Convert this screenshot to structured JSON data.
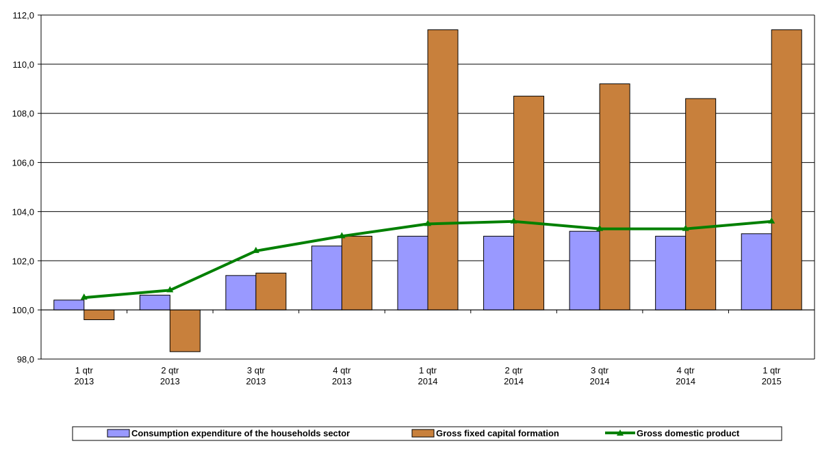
{
  "chart_data": {
    "type": "bar",
    "ylim": [
      98,
      112
    ],
    "y_ticks": [
      "98,0",
      "100,0",
      "102,0",
      "104,0",
      "106,0",
      "108,0",
      "110,0",
      "112,0"
    ],
    "grid": true,
    "legend_position": "bottom",
    "categories": [
      [
        "1 qtr",
        "2013"
      ],
      [
        "2 qtr",
        "2013"
      ],
      [
        "3 qtr",
        "2013"
      ],
      [
        "4 qtr",
        "2013"
      ],
      [
        "1 qtr",
        "2014"
      ],
      [
        "2 qtr",
        "2014"
      ],
      [
        "3 qtr",
        "2014"
      ],
      [
        "4 qtr",
        "2014"
      ],
      [
        "1 qtr",
        "2015"
      ]
    ],
    "baseline": 100,
    "series": [
      {
        "name": "Consumption expenditure of the households sector",
        "kind": "bar",
        "color": "#9999ff",
        "values": [
          100.4,
          100.6,
          101.4,
          102.6,
          103.0,
          103.0,
          103.2,
          103.0,
          103.1
        ]
      },
      {
        "name": "Gross fixed capital formation",
        "kind": "bar",
        "color": "#c8803c",
        "values": [
          99.6,
          98.3,
          101.5,
          103.0,
          111.4,
          108.7,
          109.2,
          108.6,
          111.4
        ]
      },
      {
        "name": "Gross domestic product",
        "kind": "line",
        "color": "#008000",
        "marker": "triangle",
        "values": [
          100.5,
          100.8,
          102.4,
          103.0,
          103.5,
          103.6,
          103.3,
          103.3,
          103.6
        ]
      }
    ]
  }
}
